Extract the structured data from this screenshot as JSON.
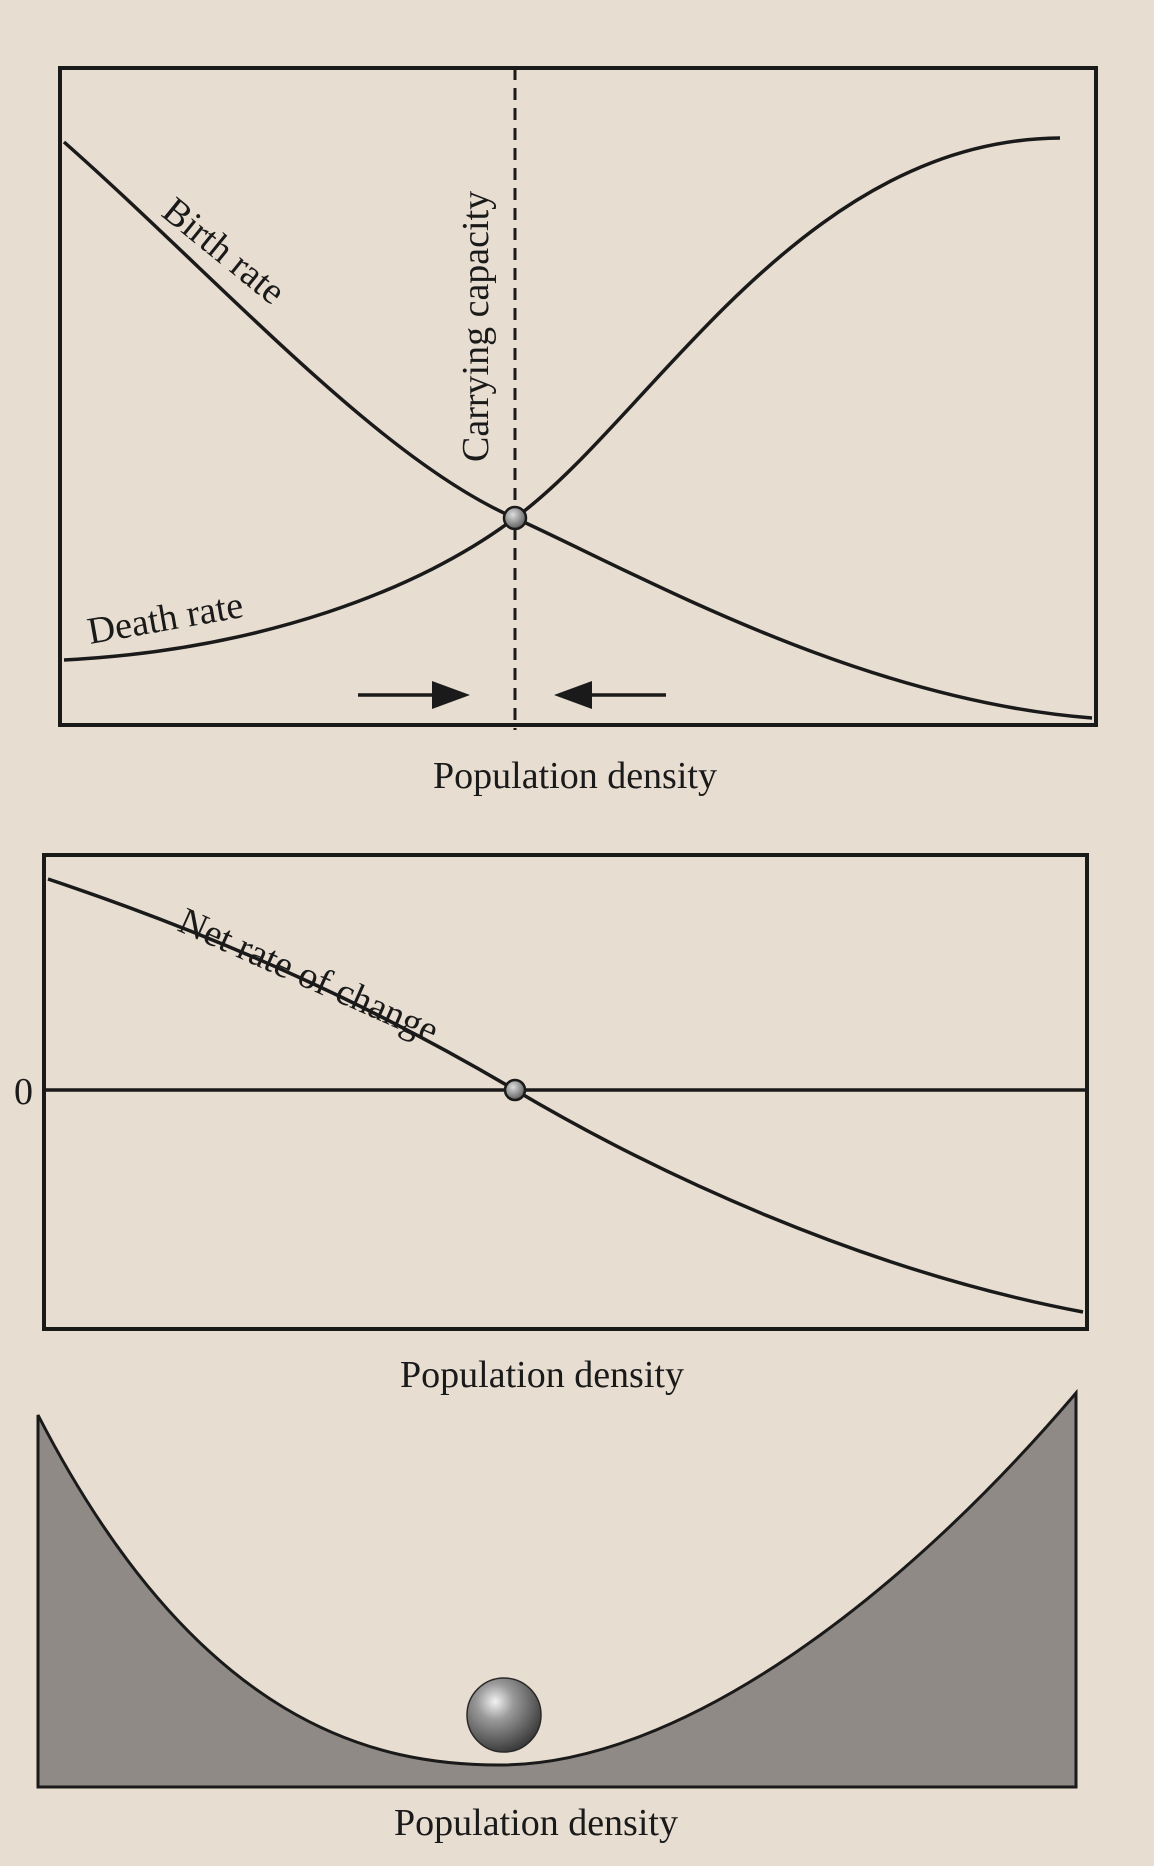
{
  "colors": {
    "paper": "#e7ddd0",
    "ink": "#1a1a1a",
    "landscape": "#8f8a85",
    "ball": "#5a5a5a"
  },
  "panel1": {
    "birth_rate_label": "Birth rate",
    "death_rate_label": "Death rate",
    "carrying_capacity_label": "Carrying capacity",
    "xlabel": "Population density",
    "arrows": [
      "right-pointing arrow toward equilibrium",
      "left-pointing arrow toward equilibrium"
    ]
  },
  "panel2": {
    "curve_label": "Net rate of change",
    "zero_label": "0",
    "xlabel": "Population density"
  },
  "panel3": {
    "xlabel": "Population density"
  }
}
